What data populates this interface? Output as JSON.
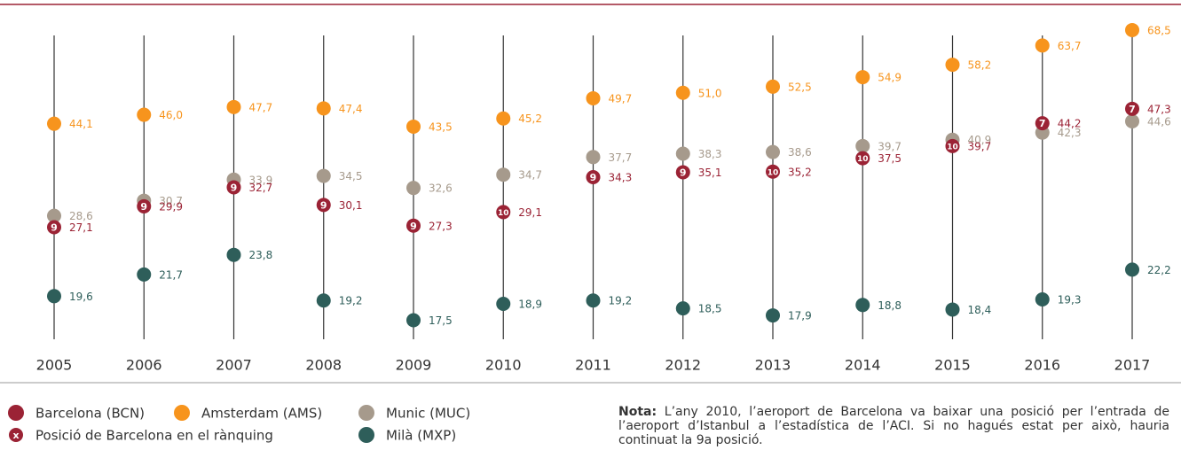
{
  "chart_data": {
    "type": "dot",
    "categories": [
      "2005",
      "2006",
      "2007",
      "2008",
      "2009",
      "2010",
      "2011",
      "2012",
      "2013",
      "2014",
      "2015",
      "2016",
      "2017"
    ],
    "log": true,
    "ylim": [
      16,
      72
    ],
    "series": [
      {
        "name": "Barcelona (BCN)",
        "color": "#9b2335",
        "values": [
          27.1,
          29.9,
          32.7,
          30.1,
          27.3,
          29.1,
          34.3,
          35.1,
          35.2,
          37.5,
          39.7,
          44.2,
          47.3
        ],
        "value_labels": [
          "27,1",
          "29,9",
          "32,7",
          "30,1",
          "27,3",
          "29,1",
          "34,3",
          "35,1",
          "35,2",
          "37,5",
          "39,7",
          "44,2",
          "47,3"
        ],
        "ranks": [
          "9",
          "9",
          "9",
          "9",
          "9",
          "10",
          "9",
          "9",
          "10",
          "10",
          "10",
          "7",
          "7"
        ]
      },
      {
        "name": "Amsterdam (AMS)",
        "color": "#f7941d",
        "values": [
          44.1,
          46.0,
          47.7,
          47.4,
          43.5,
          45.2,
          49.7,
          51.0,
          52.5,
          54.9,
          58.2,
          63.7,
          68.5
        ],
        "value_labels": [
          "44,1",
          "46,0",
          "47,7",
          "47,4",
          "43,5",
          "45,2",
          "49,7",
          "51,0",
          "52,5",
          "54,9",
          "58,2",
          "63,7",
          "68,5"
        ]
      },
      {
        "name": "Munic (MUC)",
        "color": "#a69a8c",
        "values": [
          28.6,
          30.7,
          33.9,
          34.5,
          32.6,
          34.7,
          37.7,
          38.3,
          38.6,
          39.7,
          40.9,
          42.3,
          44.6
        ],
        "value_labels": [
          "28,6",
          "30,7",
          "33,9",
          "34,5",
          "32,6",
          "34,7",
          "37,7",
          "38,3",
          "38,6",
          "39,7",
          "40,9",
          "42,3",
          "44,6"
        ]
      },
      {
        "name": "Milà (MXP)",
        "color": "#2e5e5a",
        "values": [
          19.6,
          21.7,
          23.8,
          19.2,
          17.5,
          18.9,
          19.2,
          18.5,
          17.9,
          18.8,
          18.4,
          19.3,
          22.2
        ],
        "value_labels": [
          "19,6",
          "21,7",
          "23,8",
          "19,2",
          "17,5",
          "18,9",
          "19,2",
          "18,5",
          "17,9",
          "18,8",
          "18,4",
          "19,3",
          "22,2"
        ]
      }
    ],
    "rank_legend": {
      "symbol": "x",
      "label": "Posició de Barcelona en el rànquing"
    },
    "note_label": "Nota:",
    "note_text": "L’any 2010, l’aeroport de Barcelona va baixar una posició per l’entrada de l’aeroport d’Istanbul a l’estadística de l’ACI. Si no hagués estat per això, hauria continuat la 9a posició."
  }
}
